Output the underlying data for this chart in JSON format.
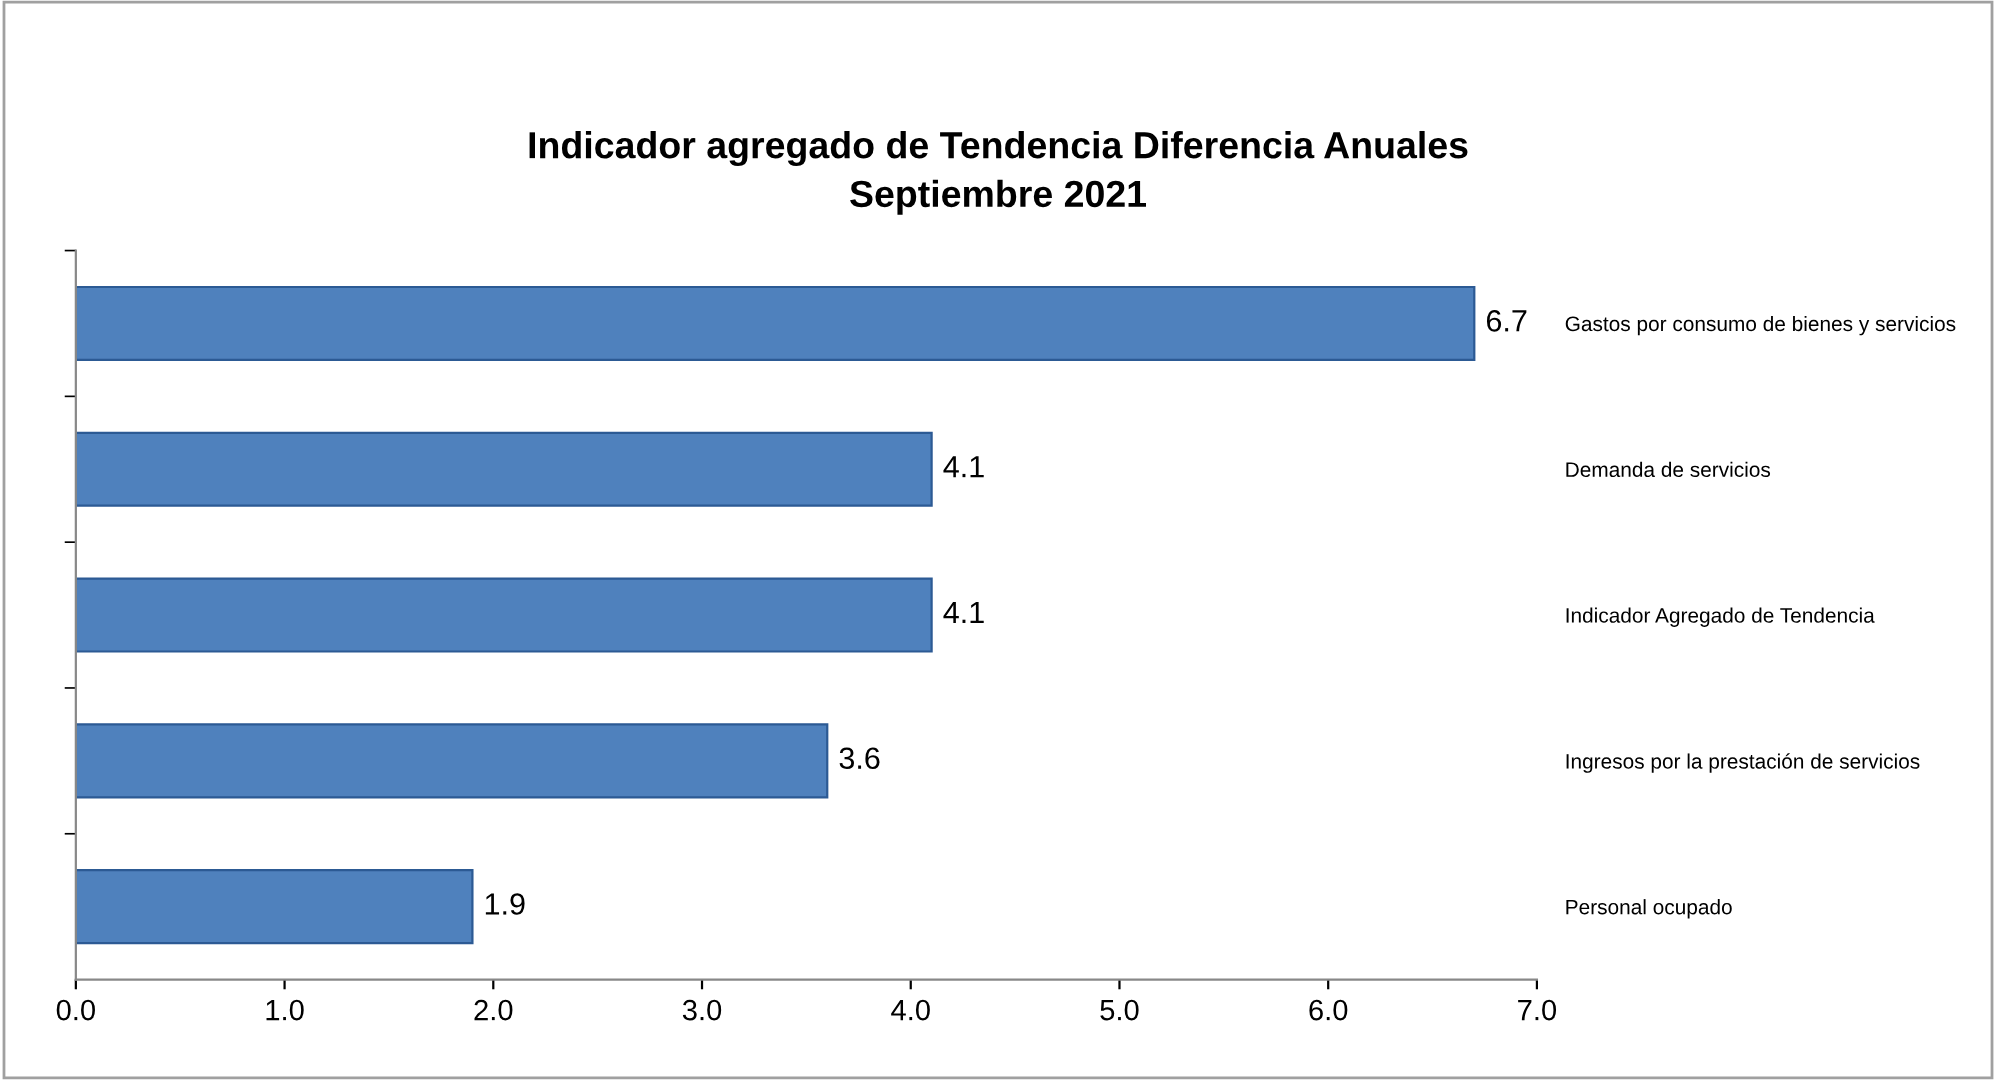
{
  "chart_data": {
    "type": "bar",
    "orientation": "horizontal",
    "title": "Indicador agregado de Tendencia Diferencia Anuales\nSeptiembre 2021",
    "categories": [
      "Gastos por consumo de bienes y servicios",
      "Demanda de servicios",
      "Indicador Agregado de Tendencia",
      "Ingresos por la prestación de servicios",
      "Personal ocupado"
    ],
    "values": [
      6.7,
      4.1,
      4.1,
      3.6,
      1.9
    ],
    "color": "#4f81bd",
    "data_labels": true,
    "xlim": [
      0,
      7
    ],
    "xticks": [
      {
        "value": 0,
        "label": "0.0"
      },
      {
        "value": 1,
        "label": "1.0"
      },
      {
        "value": 2,
        "label": "2.0"
      },
      {
        "value": 3,
        "label": "3.0"
      },
      {
        "value": 4,
        "label": "4.0"
      },
      {
        "value": 5,
        "label": "5.0"
      },
      {
        "value": 6,
        "label": "6.0"
      },
      {
        "value": 7,
        "label": "7.0"
      }
    ],
    "grid": false,
    "legend": false
  }
}
